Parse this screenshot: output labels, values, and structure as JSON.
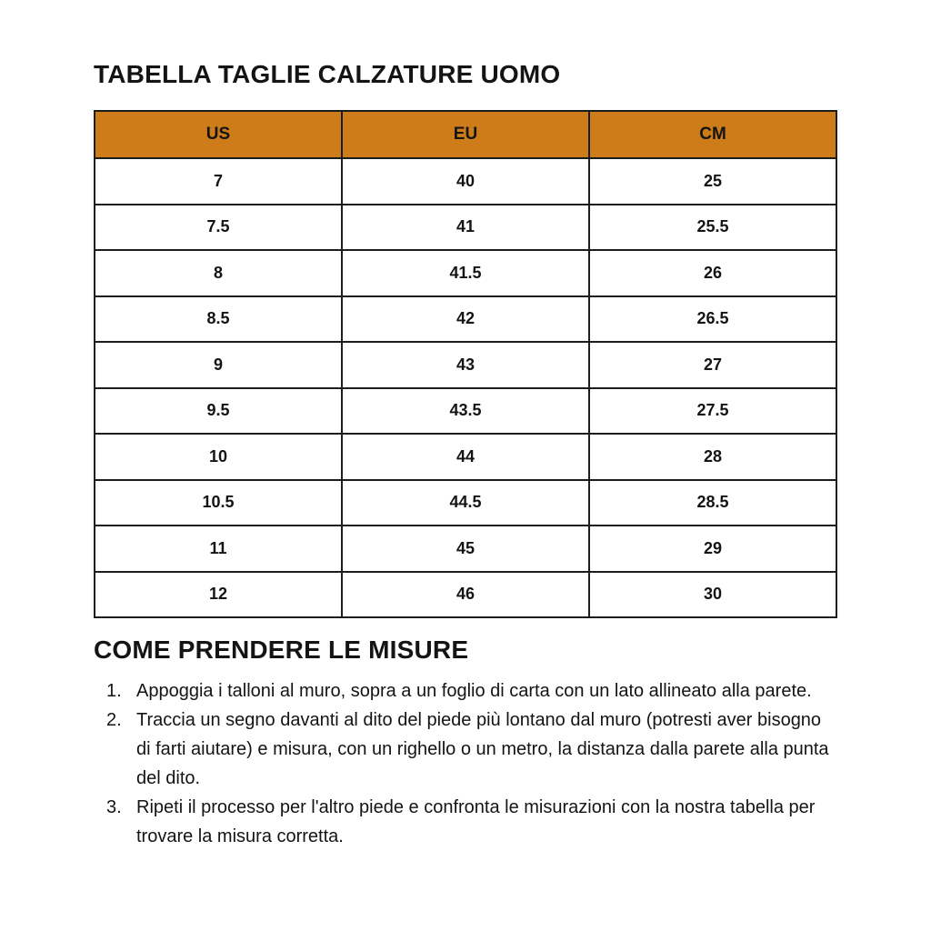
{
  "page": {
    "background_color": "#ffffff",
    "text_color": "#141414"
  },
  "size_table": {
    "title": "TABELLA TAGLIE CALZATURE UOMO",
    "header_bg_color": "#ce7b19",
    "border_color": "#1c1c1c",
    "columns": [
      "US",
      "EU",
      "CM"
    ],
    "rows": [
      [
        "7",
        "40",
        "25"
      ],
      [
        "7.5",
        "41",
        "25.5"
      ],
      [
        "8",
        "41.5",
        "26"
      ],
      [
        "8.5",
        "42",
        "26.5"
      ],
      [
        "9",
        "43",
        "27"
      ],
      [
        "9.5",
        "43.5",
        "27.5"
      ],
      [
        "10",
        "44",
        "28"
      ],
      [
        "10.5",
        "44.5",
        "28.5"
      ],
      [
        "11",
        "45",
        "29"
      ],
      [
        "12",
        "46",
        "30"
      ]
    ]
  },
  "instructions": {
    "title": "COME PRENDERE LE MISURE",
    "steps": [
      "Appoggia i talloni al muro, sopra a un foglio di carta con un lato allineato alla parete.",
      "Traccia un segno davanti al dito del piede più lontano dal muro (potresti aver bisogno di farti aiutare) e misura, con un righello o un metro, la distanza dalla parete alla punta del dito.",
      "Ripeti il processo per l'altro piede e confronta le misurazioni con la nostra tabella per trovare la misura corretta."
    ]
  }
}
